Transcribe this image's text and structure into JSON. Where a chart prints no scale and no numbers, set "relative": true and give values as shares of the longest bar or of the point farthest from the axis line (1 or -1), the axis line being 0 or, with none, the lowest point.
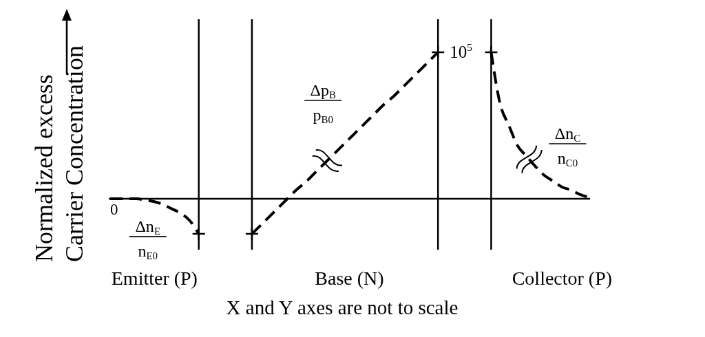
{
  "chart_data": {
    "type": "line",
    "relative": true,
    "ylabel": "Normalized excess Carrier Concentration",
    "categories": [
      null,
      null,
      null,
      null,
      null,
      "Emitter (P)",
      null,
      null,
      null,
      null,
      null,
      null,
      null,
      null,
      null,
      null,
      null,
      null,
      null,
      null,
      null,
      null,
      null,
      null,
      null,
      null,
      null,
      "Base (N)",
      null,
      null,
      null,
      null,
      null,
      null,
      null,
      null,
      null,
      null,
      null,
      null,
      null,
      null,
      null,
      null,
      null,
      null,
      null,
      null,
      null,
      null,
      null,
      "Collector (P)",
      null,
      null,
      null
    ],
    "series": [
      {
        "name": "Δn$_{E}$\nn$_{E0}$",
        "color": "#000000",
        "values": [
          0,
          0,
          0,
          0,
          -0.01,
          -0.02,
          -0.04,
          -0.07,
          -0.1,
          -0.15,
          -0.24,
          null,
          null,
          null,
          null,
          null,
          null,
          null,
          null,
          null,
          null,
          null,
          null,
          null,
          null,
          null,
          null,
          null,
          null,
          null,
          null,
          null,
          null,
          null,
          null,
          null,
          null,
          null,
          null,
          null,
          null,
          null,
          null,
          null,
          null,
          null,
          null,
          null,
          null,
          null,
          null,
          null,
          null,
          null,
          null
        ]
      },
      {
        "name": "Δp$_{B}$\np$_{B0}$",
        "color": "#000000",
        "values": [
          null,
          null,
          null,
          null,
          null,
          null,
          null,
          null,
          null,
          null,
          null,
          null,
          null,
          null,
          null,
          null,
          -0.24,
          -0.18,
          -0.12,
          -0.06,
          0,
          0.06,
          0.11,
          0.17,
          0.23,
          0.29,
          0.35,
          0.41,
          0.47,
          0.53,
          0.59,
          0.65,
          0.7,
          0.76,
          0.82,
          0.88,
          0.94,
          1,
          null,
          null,
          null,
          null,
          null,
          null,
          null,
          null,
          null,
          null,
          null,
          null,
          null,
          null,
          null,
          null,
          null
        ]
      },
      {
        "name": "Δn$_{C}$\nn$_{C0}$",
        "color": "#000000",
        "values": [
          null,
          null,
          null,
          null,
          null,
          null,
          null,
          null,
          null,
          null,
          null,
          null,
          null,
          null,
          null,
          null,
          null,
          null,
          null,
          null,
          null,
          null,
          null,
          null,
          null,
          null,
          null,
          null,
          null,
          null,
          null,
          null,
          null,
          null,
          null,
          null,
          null,
          null,
          null,
          null,
          null,
          null,
          null,
          1,
          0.65,
          0.5,
          0.36,
          0.29,
          0.22,
          0.16,
          0.12,
          0.08,
          0.06,
          0.03,
          0.01
        ]
      }
    ],
    "annotations": [
      {
        "text": "0",
        "y": 0
      },
      "10$^{5}$",
      "X and Y axes are not to scale"
    ],
    "line_style": "dashed"
  }
}
